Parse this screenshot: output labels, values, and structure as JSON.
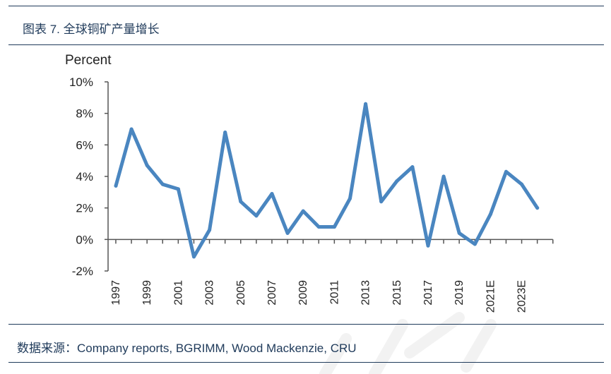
{
  "title": "图表 7.  全球铜矿产量增长",
  "source": "数据来源：Company reports, BGRIMM, Wood Mackenzie, CRU",
  "colors": {
    "line": "#4a86c0",
    "rule": "#1f3a5a",
    "axis": "#555555"
  },
  "chart_data": {
    "type": "line",
    "ylabel": "Percent",
    "xlabel": "",
    "ylim": [
      -2,
      10
    ],
    "ytick_step": 2,
    "ytick_labels": [
      "10%",
      "8%",
      "6%",
      "4%",
      "2%",
      "0%",
      "-2%"
    ],
    "categories": [
      "1997",
      "1998",
      "1999",
      "2000",
      "2001",
      "2002",
      "2003",
      "2004",
      "2005",
      "2006",
      "2007",
      "2008",
      "2009",
      "2010",
      "2011",
      "2012",
      "2013",
      "2014",
      "2015",
      "2016",
      "2017",
      "2018",
      "2019",
      "2020",
      "2021E",
      "2022E",
      "2023E",
      "2024E"
    ],
    "xtick_labels": [
      "1997",
      "1999",
      "2001",
      "2003",
      "2005",
      "2007",
      "2009",
      "2011",
      "2013",
      "2015",
      "2017",
      "2019",
      "2021E",
      "2023E"
    ],
    "series": [
      {
        "values": [
          3.4,
          7.0,
          4.7,
          3.5,
          3.2,
          -1.1,
          0.6,
          6.8,
          2.4,
          1.5,
          2.9,
          0.4,
          1.8,
          0.8,
          0.8,
          2.6,
          8.6,
          2.4,
          3.7,
          4.6,
          -0.4,
          4.0,
          0.4,
          -0.3,
          1.6,
          4.3,
          3.5,
          2.0
        ]
      }
    ],
    "legend": "none",
    "grid": false
  }
}
